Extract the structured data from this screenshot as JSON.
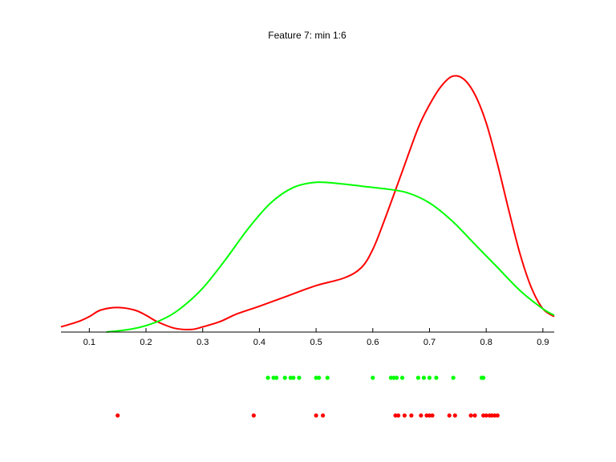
{
  "chart_data": {
    "type": "line",
    "title": "Feature 7: min 1:6",
    "xlabel": "",
    "ylabel": "",
    "xlim": [
      0.05,
      0.92
    ],
    "ylim": [
      0,
      1.0
    ],
    "xticks": [
      0.1,
      0.2,
      0.3,
      0.4,
      0.5,
      0.6,
      0.7,
      0.8,
      0.9
    ],
    "xtick_labels": [
      "0.1",
      "0.2",
      "0.3",
      "0.4",
      "0.5",
      "0.6",
      "0.7",
      "0.8",
      "0.9"
    ],
    "grid": false,
    "series": [
      {
        "color": "#ff0000",
        "x": [
          0.05,
          0.08,
          0.1,
          0.12,
          0.15,
          0.18,
          0.2,
          0.22,
          0.25,
          0.28,
          0.3,
          0.33,
          0.36,
          0.4,
          0.45,
          0.5,
          0.55,
          0.58,
          0.6,
          0.62,
          0.65,
          0.68,
          0.7,
          0.72,
          0.74,
          0.76,
          0.78,
          0.8,
          0.82,
          0.84,
          0.86,
          0.88,
          0.9,
          0.92
        ],
        "y": [
          0.02,
          0.04,
          0.06,
          0.085,
          0.095,
          0.085,
          0.065,
          0.04,
          0.015,
          0.01,
          0.02,
          0.04,
          0.07,
          0.1,
          0.14,
          0.18,
          0.21,
          0.25,
          0.32,
          0.43,
          0.61,
          0.79,
          0.88,
          0.95,
          0.99,
          0.98,
          0.92,
          0.81,
          0.65,
          0.47,
          0.3,
          0.17,
          0.09,
          0.06
        ]
      },
      {
        "color": "#00ff00",
        "x": [
          0.13,
          0.17,
          0.2,
          0.23,
          0.26,
          0.3,
          0.34,
          0.38,
          0.42,
          0.46,
          0.5,
          0.54,
          0.58,
          0.62,
          0.66,
          0.7,
          0.74,
          0.78,
          0.82,
          0.86,
          0.9,
          0.92
        ],
        "y": [
          0.0,
          0.01,
          0.025,
          0.05,
          0.09,
          0.17,
          0.28,
          0.4,
          0.5,
          0.56,
          0.58,
          0.575,
          0.565,
          0.555,
          0.54,
          0.5,
          0.43,
          0.34,
          0.25,
          0.16,
          0.09,
          0.065
        ]
      }
    ],
    "rug": [
      {
        "color": "#00ff00",
        "row": "upper",
        "x": [
          0.415,
          0.425,
          0.43,
          0.445,
          0.455,
          0.46,
          0.47,
          0.5,
          0.505,
          0.52,
          0.6,
          0.632,
          0.637,
          0.642,
          0.652,
          0.68,
          0.69,
          0.7,
          0.712,
          0.742,
          0.792,
          0.795
        ]
      },
      {
        "color": "#ff0000",
        "row": "lower",
        "x": [
          0.15,
          0.39,
          0.5,
          0.512,
          0.64,
          0.645,
          0.656,
          0.668,
          0.685,
          0.695,
          0.7,
          0.705,
          0.735,
          0.745,
          0.773,
          0.78,
          0.795,
          0.8,
          0.806,
          0.81,
          0.815,
          0.82
        ]
      }
    ]
  }
}
